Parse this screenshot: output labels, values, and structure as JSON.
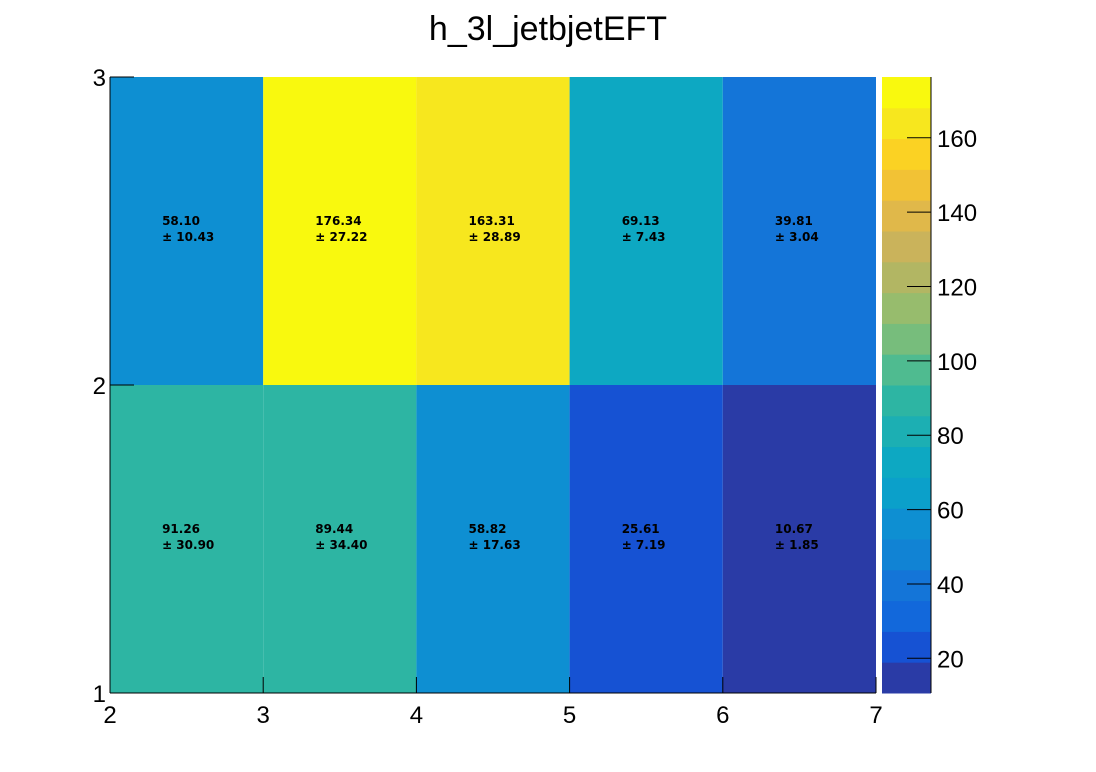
{
  "chart_data": {
    "type": "heatmap",
    "title": "h_3l_jetbjetEFT",
    "xlabel": "",
    "ylabel": "",
    "x_edges": [
      2,
      3,
      4,
      5,
      6,
      7
    ],
    "y_edges": [
      1,
      2,
      3
    ],
    "xlim": [
      2,
      7
    ],
    "ylim": [
      1,
      3
    ],
    "x_ticks": [
      "2",
      "3",
      "4",
      "5",
      "6",
      "7"
    ],
    "y_ticks": [
      "1",
      "2",
      "3"
    ],
    "cells": [
      {
        "x": [
          2,
          3
        ],
        "y": [
          1,
          2
        ],
        "value": 91.26,
        "label": "91.26",
        "error": "± 30.90"
      },
      {
        "x": [
          3,
          4
        ],
        "y": [
          1,
          2
        ],
        "value": 89.44,
        "label": "89.44",
        "error": "± 34.40"
      },
      {
        "x": [
          4,
          5
        ],
        "y": [
          1,
          2
        ],
        "value": 58.82,
        "label": "58.82",
        "error": "± 17.63"
      },
      {
        "x": [
          5,
          6
        ],
        "y": [
          1,
          2
        ],
        "value": 25.61,
        "label": "25.61",
        "error": "± 7.19"
      },
      {
        "x": [
          6,
          7
        ],
        "y": [
          1,
          2
        ],
        "value": 10.67,
        "label": "10.67",
        "error": "± 1.85"
      },
      {
        "x": [
          2,
          3
        ],
        "y": [
          2,
          3
        ],
        "value": 58.1,
        "label": "58.10",
        "error": "± 10.43"
      },
      {
        "x": [
          3,
          4
        ],
        "y": [
          2,
          3
        ],
        "value": 176.34,
        "label": "176.34",
        "error": "± 27.22"
      },
      {
        "x": [
          4,
          5
        ],
        "y": [
          2,
          3
        ],
        "value": 163.31,
        "label": "163.31",
        "error": "± 28.89"
      },
      {
        "x": [
          5,
          6
        ],
        "y": [
          2,
          3
        ],
        "value": 69.13,
        "label": "69.13",
        "error": "± 7.43"
      },
      {
        "x": [
          6,
          7
        ],
        "y": [
          2,
          3
        ],
        "value": 39.81,
        "label": "39.81",
        "error": "± 3.04"
      }
    ],
    "colorscale": {
      "range": [
        10.67,
        176.34
      ],
      "ticks": [
        20,
        40,
        60,
        80,
        100,
        120,
        140,
        160
      ],
      "colors": [
        "#2a3ba6",
        "#1652d3",
        "#1268db",
        "#1475d8",
        "#1183d4",
        "#0e8fd2",
        "#0ba0ca",
        "#0da8c2",
        "#1cafb3",
        "#2db5a3",
        "#4fbb90",
        "#77bd7c",
        "#97bc6d",
        "#b2b663",
        "#cab35b",
        "#e0b84a",
        "#f2c235",
        "#fbd223",
        "#f7e71e",
        "#f9f90e"
      ]
    },
    "grid": false,
    "legend": "none"
  }
}
